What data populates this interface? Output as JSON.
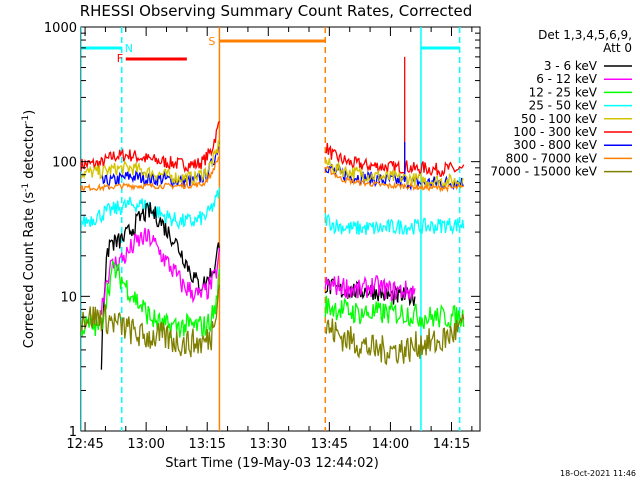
{
  "chart_data": {
    "type": "line",
    "title": "RHESSI Observing Summary Count Rates, Corrected",
    "xlabel": "Start Time (19-May-03 12:44:02)",
    "ylabel_main": "Corrected Count Rate (s",
    "ylabel_sup1": "-1",
    "ylabel_mid": " detector",
    "ylabel_sup2": "-1",
    "ylabel_end": ")",
    "y_scale": "log",
    "ylim": [
      1,
      1000
    ],
    "x_start_minutes": 0,
    "x_end_minutes": 98,
    "x_ticks": [
      {
        "label": "12:45",
        "t": 1
      },
      {
        "label": "13:00",
        "t": 16
      },
      {
        "label": "13:15",
        "t": 31
      },
      {
        "label": "13:30",
        "t": 46
      },
      {
        "label": "13:45",
        "t": 61
      },
      {
        "label": "14:00",
        "t": 76
      },
      {
        "label": "14:15",
        "t": 91
      }
    ],
    "y_ticks": [
      {
        "label": "1",
        "v": 1
      },
      {
        "label": "10",
        "v": 10
      },
      {
        "label": "100",
        "v": 100
      },
      {
        "label": "1000",
        "v": 1000
      }
    ],
    "legend_header_1": "Det 1,3,4,5,6,9,",
    "legend_header_2": "Att 0",
    "legend": [
      {
        "label": "3 - 6 keV",
        "color": "#000000"
      },
      {
        "label": "6 - 12 keV",
        "color": "#ff00ff"
      },
      {
        "label": "12 - 25 keV",
        "color": "#00ff00"
      },
      {
        "label": "25 - 50 keV",
        "color": "#00ffff"
      },
      {
        "label": "50 - 100 keV",
        "color": "#d4c400"
      },
      {
        "label": "100 - 300 keV",
        "color": "#ff0000"
      },
      {
        "label": "300 - 800 keV",
        "color": "#0000ff"
      },
      {
        "label": "800 - 7000 keV",
        "color": "#ff8000"
      },
      {
        "label": "7000 - 15000 keV",
        "color": "#808000"
      }
    ],
    "flag_labels": {
      "n": "N",
      "f": "F",
      "s": "S"
    },
    "flags": {
      "night": [
        {
          "t0": 0,
          "t1": 10
        },
        {
          "t0": 83.5,
          "t1": 93
        }
      ],
      "flare": [
        {
          "t0": 11,
          "t1": 26
        }
      ],
      "saa": [
        {
          "t0": 34,
          "t1": 60
        }
      ]
    },
    "vlines": [
      {
        "t": 0,
        "color": "#00ffff",
        "style": "solid"
      },
      {
        "t": 10,
        "color": "#00ffff",
        "style": "dashed"
      },
      {
        "t": 34,
        "color": "#ff8000",
        "style": "solid"
      },
      {
        "t": 60,
        "color": "#ff8000",
        "style": "dashed"
      },
      {
        "t": 83.5,
        "color": "#00ffff",
        "style": "solid"
      },
      {
        "t": 93,
        "color": "#00ffff",
        "style": "dashed"
      }
    ],
    "series": [
      {
        "name": "100 - 300 keV",
        "color": "#ff0000",
        "seg1": {
          "x": [
            0,
            5,
            8,
            12,
            16,
            20,
            24,
            28,
            30,
            32,
            33.5,
            34
          ],
          "y": [
            95,
            97,
            110,
            112,
            105,
            100,
            96,
            95,
            100,
            120,
            170,
            200
          ]
        },
        "seg2": {
          "x": [
            60,
            62,
            66,
            70,
            74,
            78,
            80,
            82,
            84,
            86,
            88,
            90,
            92,
            94
          ],
          "y": [
            130,
            110,
            98,
            94,
            92,
            90,
            92,
            88,
            90,
            88,
            87,
            89,
            87,
            87
          ]
        },
        "noise": 0.05,
        "spikes": [
          {
            "t": 79.5,
            "v": 600
          }
        ]
      },
      {
        "name": "300 - 800 keV",
        "color": "#0000ff",
        "seg1": {
          "x": [
            5,
            8,
            12,
            16,
            20,
            24,
            28,
            31,
            33,
            34
          ],
          "y": [
            70,
            72,
            78,
            75,
            74,
            72,
            72,
            80,
            110,
            140
          ]
        },
        "seg2": {
          "x": [
            60,
            62,
            66,
            70,
            74,
            78,
            82,
            86,
            90,
            94
          ],
          "y": [
            95,
            85,
            78,
            76,
            73,
            72,
            70,
            70,
            70,
            70
          ]
        },
        "noise": 0.05,
        "spikes": [
          {
            "t": 79.5,
            "v": 140
          }
        ]
      },
      {
        "name": "50 - 100 keV",
        "color": "#d4c400",
        "seg1": {
          "x": [
            0,
            5,
            8,
            12,
            16,
            20,
            24,
            28,
            31,
            33,
            34
          ],
          "y": [
            82,
            84,
            88,
            90,
            84,
            80,
            76,
            76,
            85,
            110,
            140
          ]
        },
        "seg2": {
          "x": [
            60,
            62,
            66,
            70,
            74,
            78,
            82,
            86,
            90,
            94
          ],
          "y": [
            100,
            90,
            84,
            80,
            77,
            76,
            74,
            72,
            72,
            72
          ]
        },
        "noise": 0.05,
        "spikes": []
      },
      {
        "name": "800 - 7000 keV",
        "color": "#ff8000",
        "seg1": {
          "x": [
            0,
            5,
            10,
            15,
            20,
            25,
            30,
            32,
            34
          ],
          "y": [
            64,
            64,
            66,
            66,
            66,
            66,
            68,
            80,
            110
          ]
        },
        "seg2": {
          "x": [
            60,
            64,
            68,
            72,
            76,
            80,
            84,
            88,
            94
          ],
          "y": [
            90,
            74,
            70,
            68,
            66,
            66,
            64,
            64,
            64
          ]
        },
        "noise": 0.02,
        "spikes": []
      },
      {
        "name": "25 - 50 keV",
        "color": "#00ffff",
        "seg1": {
          "x": [
            0,
            3,
            6,
            9,
            12,
            16,
            20,
            24,
            28,
            31,
            33,
            34
          ],
          "y": [
            35,
            38,
            42,
            45,
            48,
            48,
            40,
            36,
            36,
            40,
            50,
            60
          ]
        },
        "seg2": {
          "x": [
            60,
            62,
            66,
            70,
            74,
            78,
            82,
            86,
            90,
            94
          ],
          "y": [
            38,
            34,
            32,
            32,
            32,
            33,
            33,
            33,
            34,
            34
          ]
        },
        "noise": 0.06,
        "spikes": []
      },
      {
        "name": "3 - 6 keV",
        "color": "#000000",
        "seg1": {
          "x": [
            5,
            7,
            9,
            11,
            13,
            15,
            17,
            19,
            21,
            23,
            25,
            27,
            29,
            31,
            33,
            34
          ],
          "y": [
            3,
            25,
            25,
            28,
            33,
            40,
            43,
            38,
            31,
            26,
            20,
            15,
            12,
            13,
            17,
            25
          ]
        },
        "seg2": {
          "x": [
            60,
            64,
            68,
            72,
            76,
            80,
            82
          ],
          "y": [
            12,
            11,
            11,
            11,
            10,
            10,
            10
          ]
        },
        "noise": 0.07,
        "spikes": []
      },
      {
        "name": "6 - 12 keV",
        "color": "#ff00ff",
        "seg1": {
          "x": [
            5,
            7,
            9,
            11,
            13,
            15,
            17,
            19,
            21,
            23,
            25,
            27,
            29,
            31,
            33,
            34
          ],
          "y": [
            8,
            16,
            18,
            20,
            24,
            27,
            27,
            22,
            18,
            15,
            12,
            11,
            10,
            11,
            14,
            20
          ]
        },
        "seg2": {
          "x": [
            60,
            64,
            68,
            72,
            76,
            80,
            82
          ],
          "y": [
            12,
            12,
            11,
            12,
            11,
            11,
            11
          ]
        },
        "noise": 0.08,
        "spikes": []
      },
      {
        "name": "12 - 25 keV",
        "color": "#00ff00",
        "seg1": {
          "x": [
            0,
            5,
            8,
            11,
            14,
            17,
            20,
            24,
            28,
            31,
            33,
            34
          ],
          "y": [
            6,
            6,
            16,
            12,
            9,
            7,
            6,
            6,
            6,
            6,
            8,
            14
          ]
        },
        "seg2": {
          "x": [
            60,
            64,
            68,
            72,
            76,
            80,
            84,
            88,
            94
          ],
          "y": [
            8.5,
            8,
            7.5,
            7.5,
            7.5,
            7.5,
            7,
            7,
            7
          ]
        },
        "noise": 0.09,
        "spikes": []
      },
      {
        "name": "7000 - 15000 keV",
        "color": "#808000",
        "seg1": {
          "x": [
            0,
            5,
            10,
            15,
            20,
            25,
            30,
            32,
            33,
            34
          ],
          "y": [
            7,
            7,
            6,
            5,
            5,
            4.5,
            4.5,
            5,
            8,
            12
          ]
        },
        "seg2": {
          "x": [
            60,
            64,
            68,
            72,
            76,
            80,
            84,
            88,
            92,
            94
          ],
          "y": [
            6,
            5,
            4.5,
            4,
            4,
            4,
            4.5,
            4.5,
            5.5,
            6
          ]
        },
        "noise": 0.11,
        "spikes": []
      }
    ]
  },
  "footer": {
    "date_stamp": "18-Oct-2021 11:46"
  }
}
